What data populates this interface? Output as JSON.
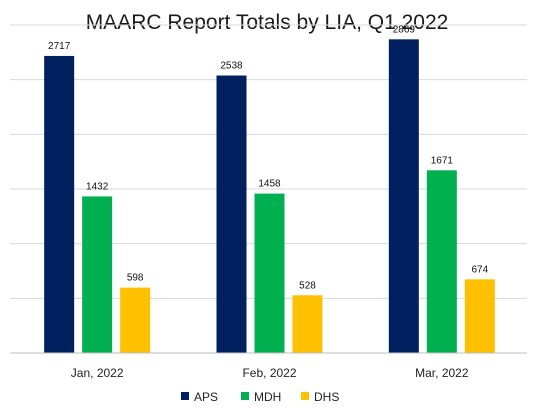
{
  "chart_data": {
    "type": "bar",
    "title": "MAARC Report Totals by LIA, Q1 2022",
    "xlabel": "",
    "ylabel": "",
    "categories": [
      "Jan, 2022",
      "Feb, 2022",
      "Mar, 2022"
    ],
    "series": [
      {
        "name": "APS",
        "color": "#002060",
        "values": [
          2717,
          2538,
          2869
        ]
      },
      {
        "name": "MDH",
        "color": "#00B050",
        "values": [
          1432,
          1458,
          1671
        ]
      },
      {
        "name": "DHS",
        "color": "#FFC000",
        "values": [
          598,
          528,
          674
        ]
      }
    ],
    "ylim": [
      0,
      3000
    ],
    "grid": true,
    "y_tick_labels_shown": false,
    "data_labels": true,
    "legend_position": "bottom"
  }
}
